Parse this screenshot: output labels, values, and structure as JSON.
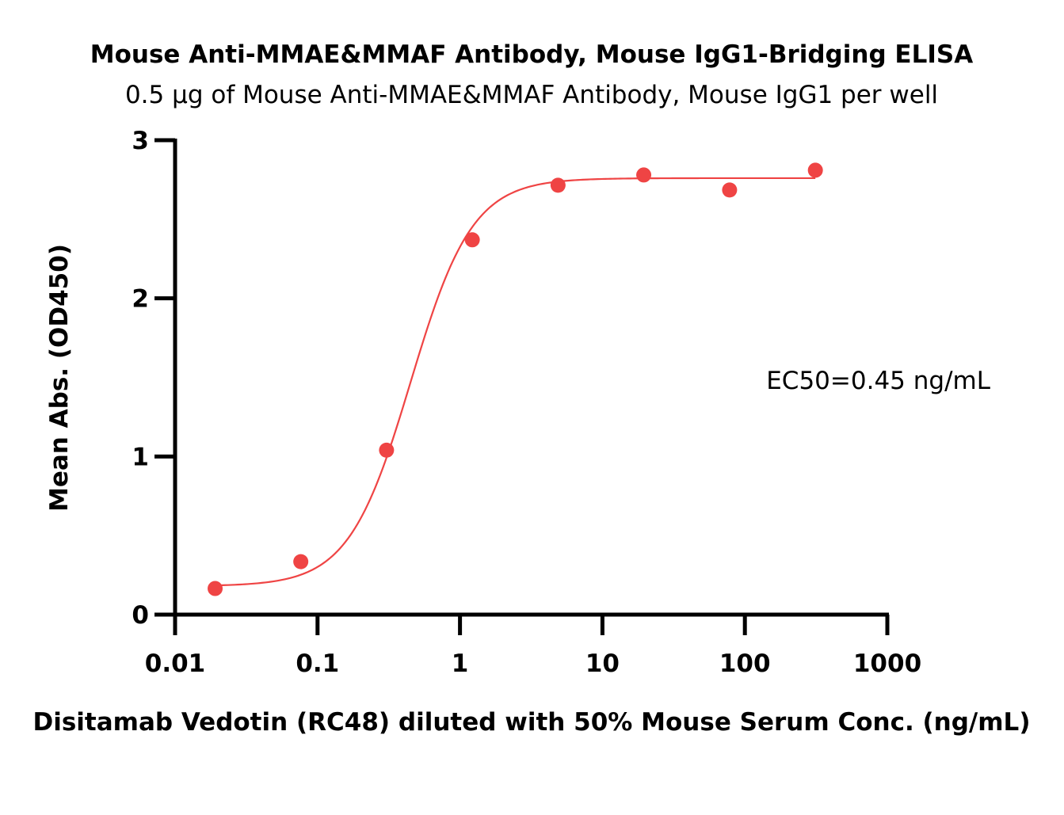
{
  "chart_data": {
    "type": "scatter",
    "title": "Mouse Anti-MMAE&MMAF Antibody, Mouse IgG1-Bridging ELISA",
    "subtitle": "0.5 μg of Mouse Anti-MMAE&MMAF Antibody, Mouse IgG1 per well",
    "xlabel": "Disitamab Vedotin (RC48) diluted with 50% Mouse Serum Conc. (ng/mL)",
    "ylabel": "Mean Abs. (OD450)",
    "xscale": "log",
    "xlim": [
      0.01,
      1000
    ],
    "ylim": [
      0,
      3
    ],
    "xticks": [
      0.01,
      0.1,
      1,
      10,
      100,
      1000
    ],
    "xtick_labels": [
      "0.01",
      "0.1",
      "1",
      "10",
      "100",
      "1000"
    ],
    "yticks": [
      0,
      1,
      2,
      3
    ],
    "ytick_labels": [
      "0",
      "1",
      "2",
      "3"
    ],
    "grid": false,
    "annotation": "EC50=0.45 ng/mL",
    "color": "#ef4444",
    "series": [
      {
        "x": [
          0.0191,
          0.0763,
          0.305,
          1.22,
          4.88,
          19.5,
          78.1,
          312.5
        ],
        "y": [
          0.165,
          0.335,
          1.04,
          2.37,
          2.715,
          2.78,
          2.685,
          2.81
        ]
      }
    ],
    "fit": {
      "model": "4PL",
      "bottom": 0.18,
      "top": 2.76,
      "ec50": 0.45,
      "hill": 2.0
    }
  }
}
